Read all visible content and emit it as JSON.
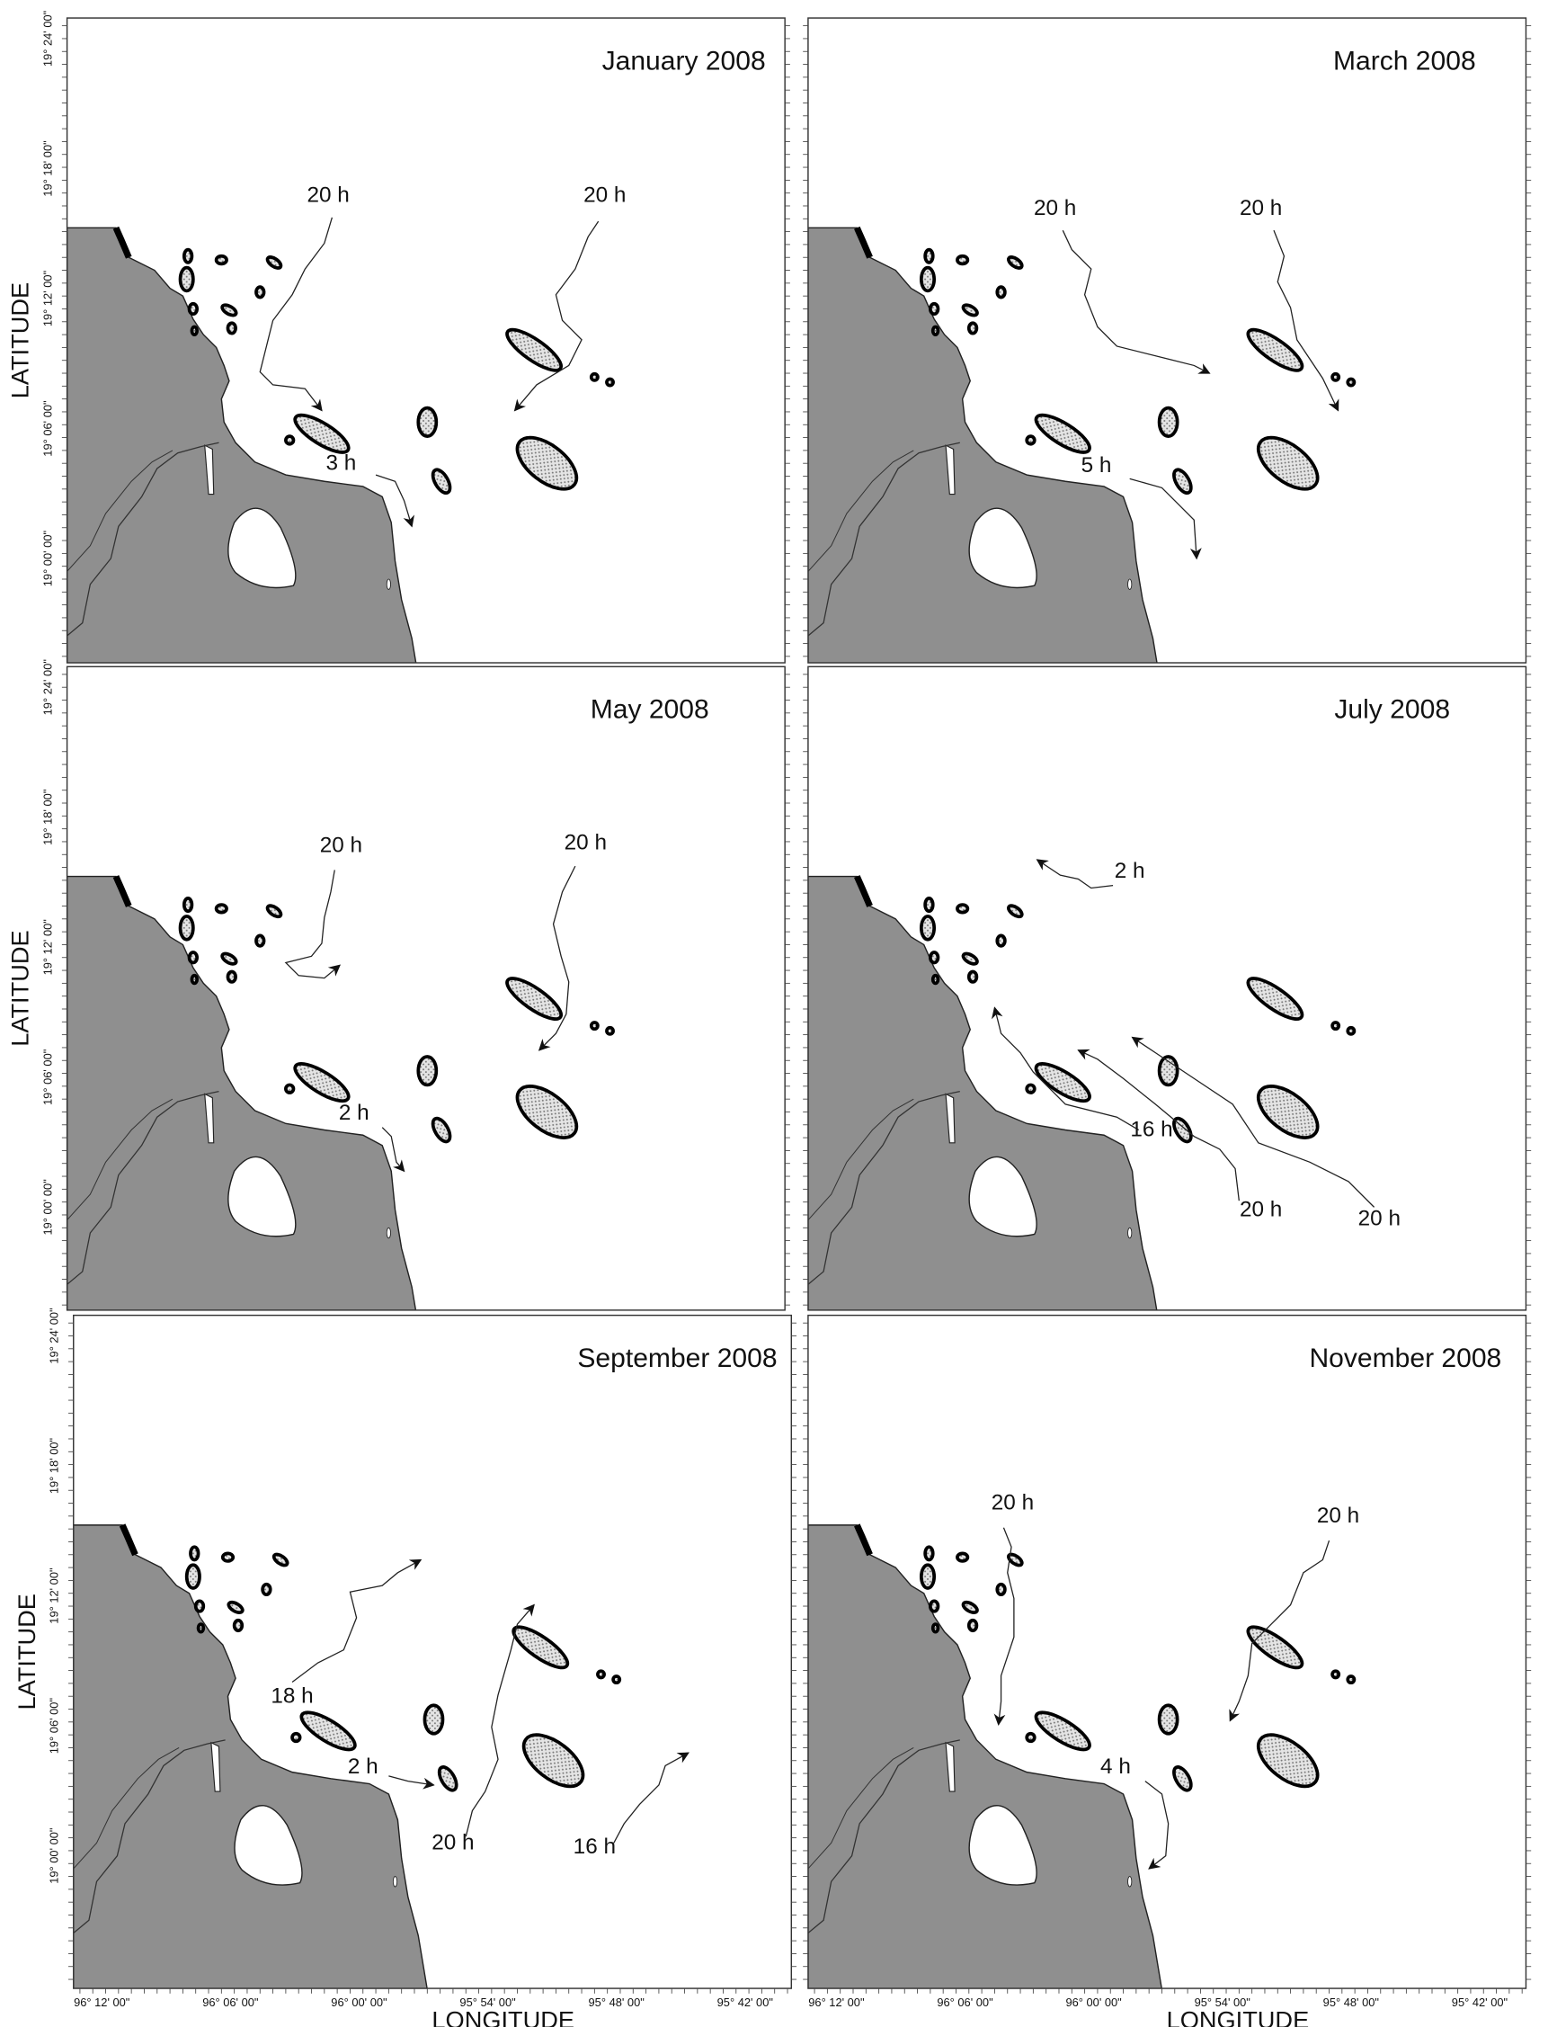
{
  "axis_labels": {
    "y": "LATITUDE",
    "x": "LONGITUDE"
  },
  "lat_ticks": [
    "19° 24' 00\"",
    "19° 18' 00\"",
    "19° 12' 00\"",
    "19° 06' 00\"",
    "19° 00' 00\""
  ],
  "lon_ticks": [
    "96° 12' 00\"",
    "96° 06' 00\"",
    "96° 00' 00\"",
    "95° 54' 00\"",
    "95° 48' 00\"",
    "95° 42' 00\""
  ],
  "panels": [
    {
      "title": "January 2008",
      "trajectories": [
        "20 h",
        "20 h",
        "3 h"
      ]
    },
    {
      "title": "March 2008",
      "trajectories": [
        "20 h",
        "20 h",
        "5 h"
      ]
    },
    {
      "title": "May 2008",
      "trajectories": [
        "20 h",
        "20 h",
        "2 h"
      ]
    },
    {
      "title": "July 2008",
      "trajectories": [
        "2 h",
        "16 h",
        "20 h",
        "20 h"
      ]
    },
    {
      "title": "September 2008",
      "trajectories": [
        "18 h",
        "2 h",
        "20 h",
        "16 h"
      ]
    },
    {
      "title": "November 2008",
      "trajectories": [
        "20 h",
        "20 h",
        "4 h"
      ]
    }
  ]
}
